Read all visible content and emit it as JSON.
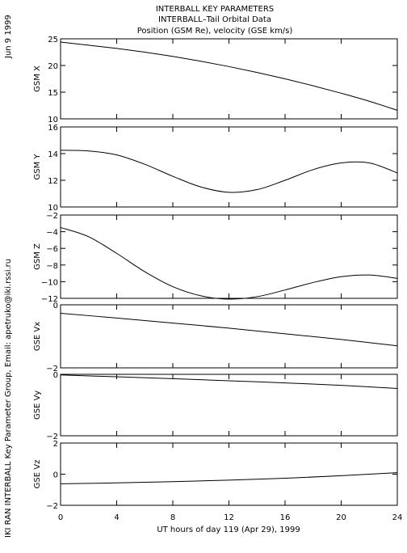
{
  "header": {
    "title": "INTERBALL KEY PARAMETERS",
    "subtitle": "INTERBALL–Tail Orbital Data",
    "description": "Position (GSM Re), velocity (GSE km/s)"
  },
  "side_date": "Jun  9 1999",
  "side_credit": "IKI RAN INTERBALL Key Parameter Group, Email: apetruko@iki.rssi.ru",
  "xaxis": {
    "label": "UT hours of day 119 (Apr 29), 1999",
    "ticks": [
      0,
      4,
      8,
      12,
      16,
      20,
      24
    ],
    "tick_labels": [
      "0",
      "4",
      "8",
      "12",
      "16",
      "20",
      "24"
    ]
  },
  "chart_data": [
    {
      "type": "line",
      "ylabel": "GSM X",
      "ylim": [
        10,
        25
      ],
      "yticks": [
        10,
        15,
        20,
        25
      ],
      "ytick_labels": [
        "10",
        "15",
        "20",
        "25"
      ],
      "xlim": [
        0,
        24
      ],
      "x": [
        0,
        2,
        4,
        6,
        8,
        10,
        12,
        14,
        16,
        18,
        20,
        22,
        24
      ],
      "y": [
        24.4,
        23.8,
        23.2,
        22.5,
        21.7,
        20.8,
        19.8,
        18.7,
        17.5,
        16.2,
        14.8,
        13.3,
        11.6
      ]
    },
    {
      "type": "line",
      "ylabel": "GSM Y",
      "ylim": [
        10,
        16
      ],
      "yticks": [
        10,
        12,
        14,
        16
      ],
      "ytick_labels": [
        "10",
        "12",
        "14",
        "16"
      ],
      "xlim": [
        0,
        24
      ],
      "x": [
        0,
        2,
        4,
        6,
        8,
        10,
        12,
        14,
        16,
        18,
        20,
        22,
        24
      ],
      "y": [
        14.25,
        14.2,
        13.9,
        13.2,
        12.3,
        11.5,
        11.1,
        11.3,
        12.0,
        12.8,
        13.3,
        13.3,
        12.55
      ]
    },
    {
      "type": "line",
      "ylabel": "GSM Z",
      "ylim": [
        -12,
        -2
      ],
      "yticks": [
        -12,
        -10,
        -8,
        -6,
        -4,
        -2
      ],
      "ytick_labels": [
        "−12",
        "−10",
        "−8",
        "−6",
        "−4",
        "−2"
      ],
      "xlim": [
        0,
        24
      ],
      "x": [
        0,
        2,
        4,
        6,
        8,
        10,
        12,
        14,
        16,
        18,
        20,
        22,
        24
      ],
      "y": [
        -3.5,
        -4.6,
        -6.6,
        -8.8,
        -10.6,
        -11.7,
        -12.1,
        -11.8,
        -11.0,
        -10.1,
        -9.4,
        -9.2,
        -9.6
      ]
    },
    {
      "type": "line",
      "ylabel": "GSE Vx",
      "ylim": [
        -2,
        0
      ],
      "yticks": [
        -2,
        0
      ],
      "ytick_labels": [
        "−2",
        "0"
      ],
      "xlim": [
        0,
        24
      ],
      "x": [
        0,
        4,
        8,
        12,
        16,
        20,
        24
      ],
      "y": [
        -0.27,
        -0.42,
        -0.58,
        -0.74,
        -0.92,
        -1.1,
        -1.3
      ]
    },
    {
      "type": "line",
      "ylabel": "GSE Vy",
      "ylim": [
        -2,
        0
      ],
      "yticks": [
        -2,
        0
      ],
      "ytick_labels": [
        "−2",
        "0"
      ],
      "xlim": [
        0,
        24
      ],
      "x": [
        0,
        4,
        8,
        12,
        16,
        20,
        24
      ],
      "y": [
        -0.02,
        -0.08,
        -0.14,
        -0.21,
        -0.28,
        -0.36,
        -0.46
      ]
    },
    {
      "type": "line",
      "ylabel": "GSE Vz",
      "ylim": [
        -2,
        2
      ],
      "yticks": [
        -2,
        0,
        2
      ],
      "ytick_labels": [
        "−2",
        "0",
        "2"
      ],
      "xlim": [
        0,
        24
      ],
      "x": [
        0,
        4,
        8,
        12,
        16,
        20,
        24
      ],
      "y": [
        -0.62,
        -0.56,
        -0.48,
        -0.38,
        -0.26,
        -0.1,
        0.1
      ]
    }
  ]
}
